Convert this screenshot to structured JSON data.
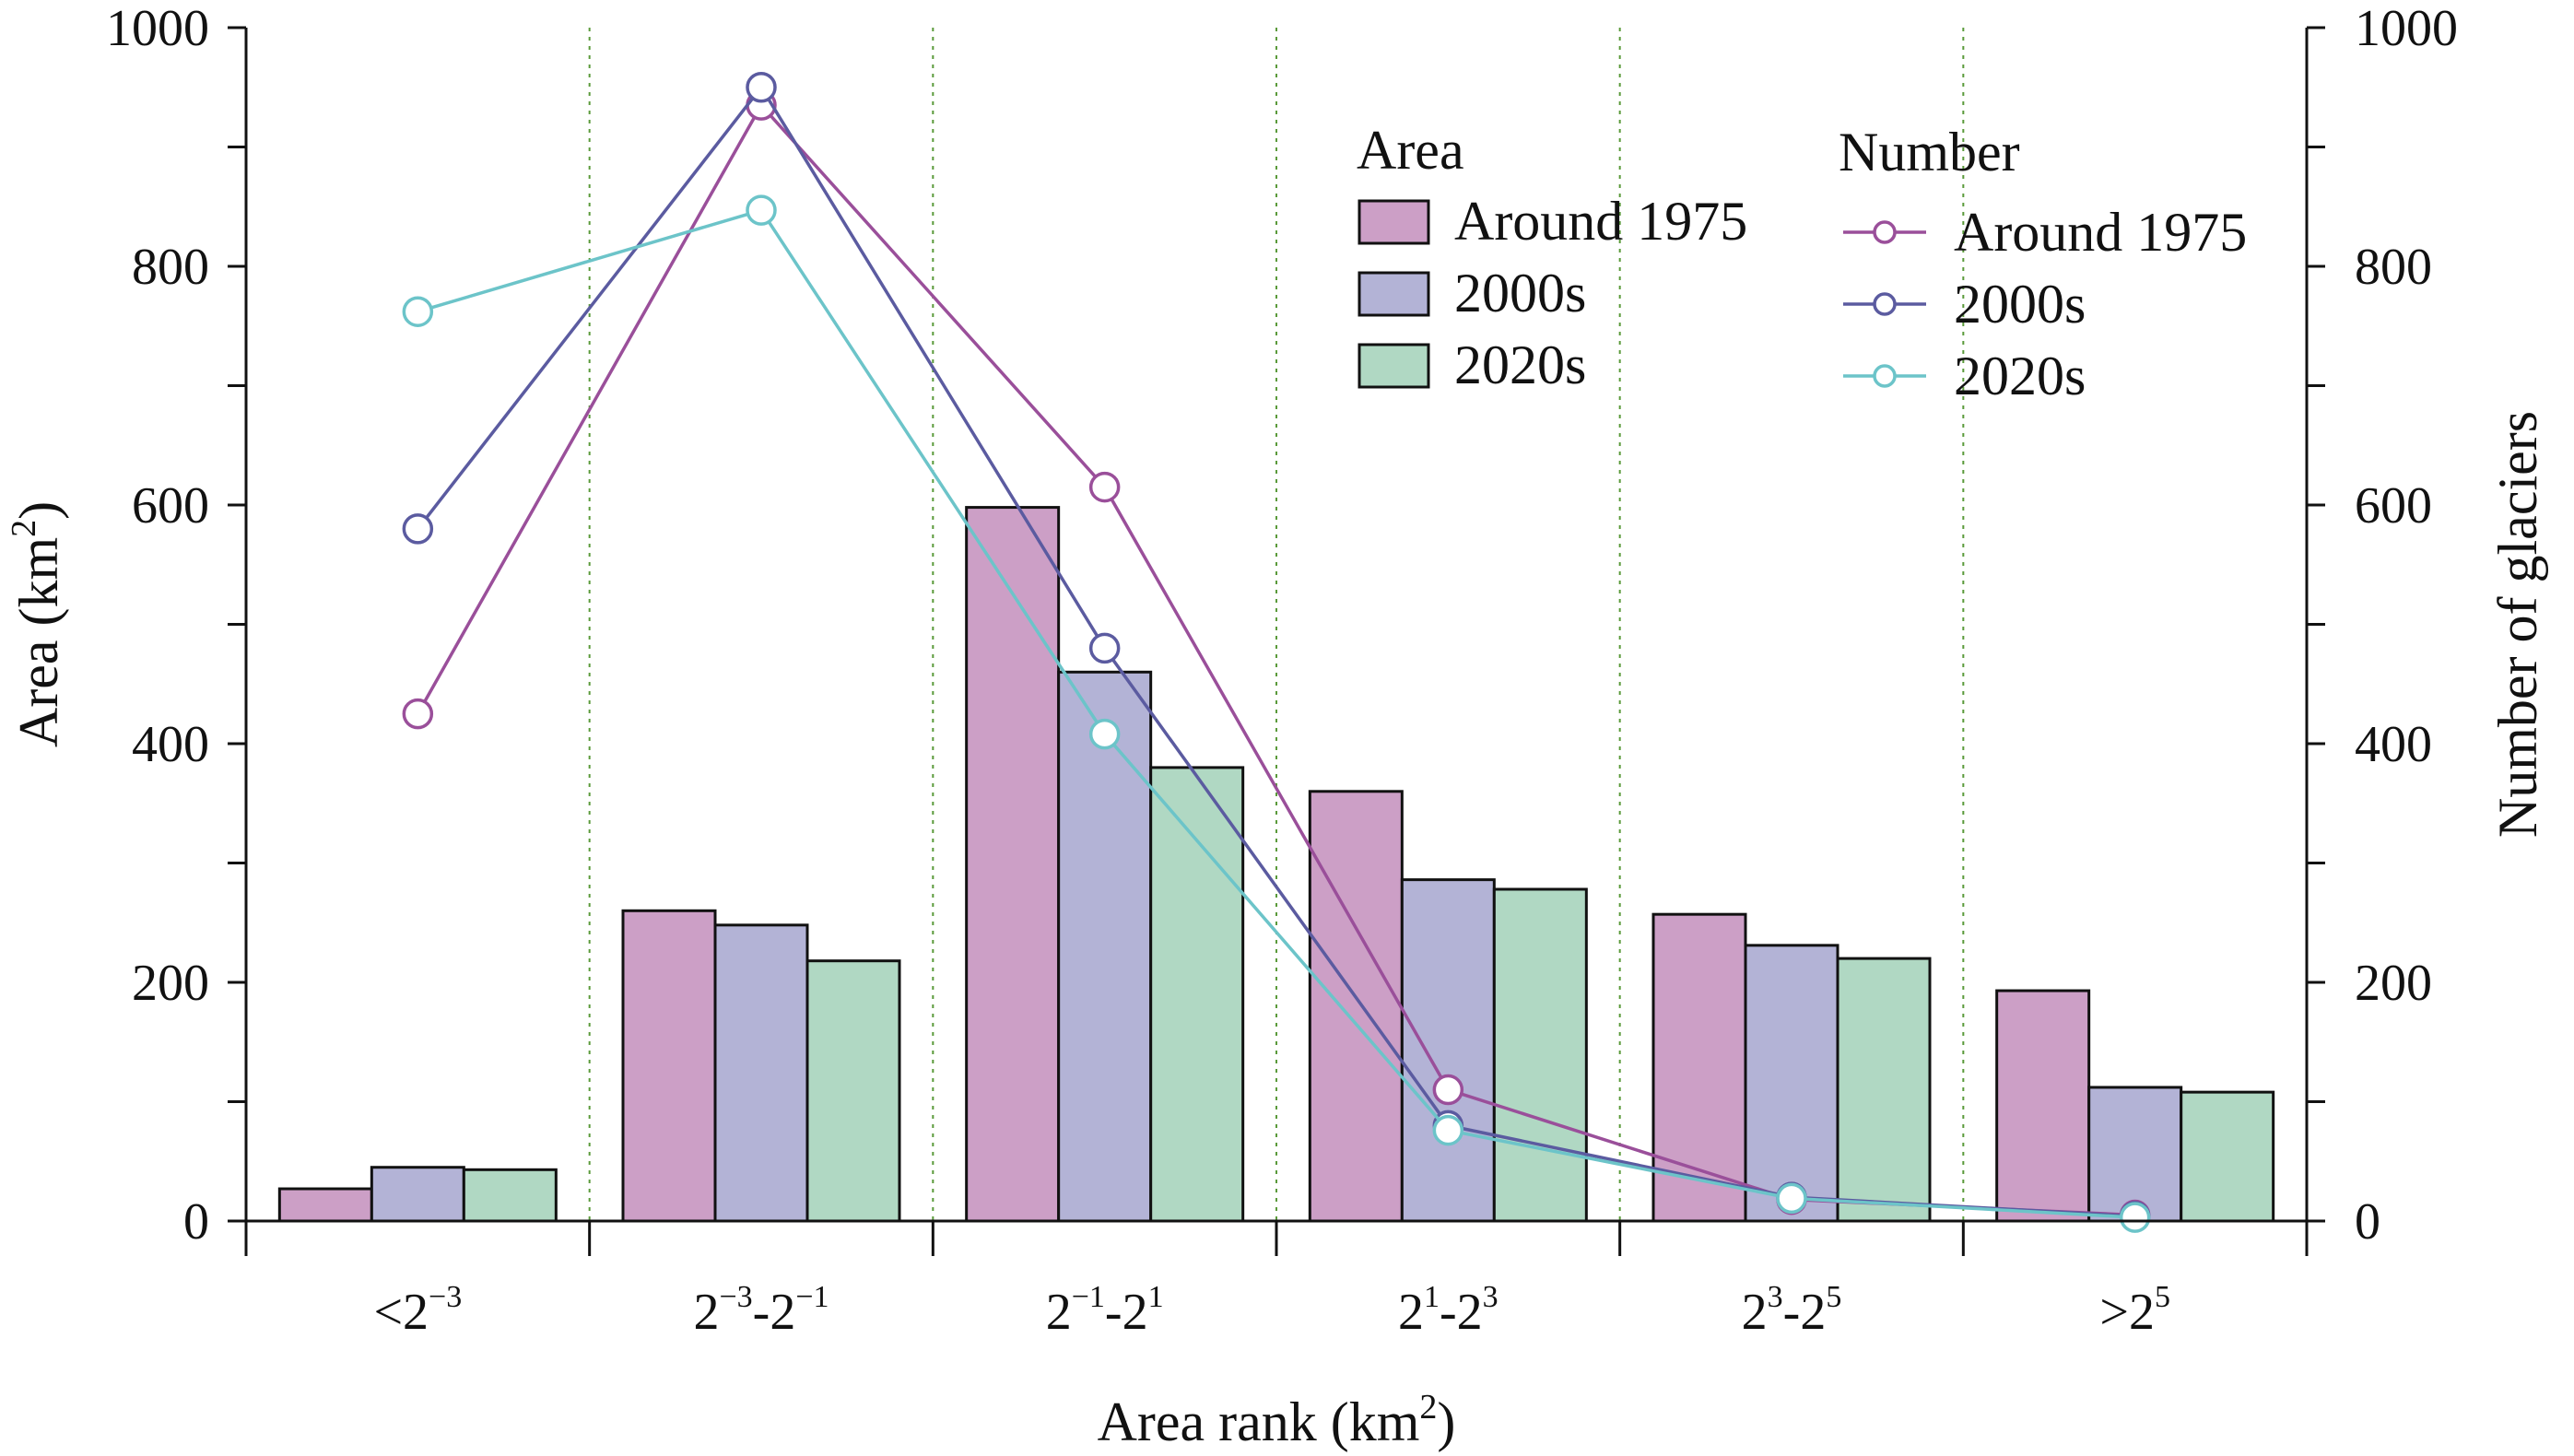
{
  "chart_data": {
    "type": "bar",
    "categories": [
      "<2^-3",
      "2^-3-2^-1",
      "2^-1-2^1",
      "2^1-2^3",
      "2^3-2^5",
      ">2^5"
    ],
    "xlabel": "Area rank (km²)",
    "ylabel": "Area (km²)",
    "y2label": "Number of glaciers",
    "ylim": [
      0,
      1000
    ],
    "y2lim": [
      0,
      1000
    ],
    "y_ticks": [
      0,
      200,
      400,
      600,
      800,
      1000
    ],
    "y2_ticks": [
      0,
      200,
      400,
      600,
      800,
      1000
    ],
    "grid": "vertical dotted lines between categories",
    "legend": {
      "area_title": "Area",
      "number_title": "Number",
      "placement": "top-right"
    },
    "bar_series": [
      {
        "name": "Around 1975",
        "color": "#cc9fc6",
        "values": [
          27,
          260,
          598,
          360,
          257,
          193
        ]
      },
      {
        "name": "2000s",
        "color": "#b3b3d6",
        "values": [
          45,
          248,
          460,
          286,
          231,
          112
        ]
      },
      {
        "name": "2020s",
        "color": "#b0d8c3",
        "values": [
          43,
          218,
          380,
          278,
          220,
          108
        ]
      }
    ],
    "line_series": [
      {
        "name": "Around 1975",
        "color": "#9a4f9a",
        "values": [
          425,
          935,
          615,
          110,
          18,
          5
        ]
      },
      {
        "name": "2000s",
        "color": "#5b5ba0",
        "values": [
          580,
          950,
          480,
          80,
          20,
          4
        ]
      },
      {
        "name": "2020s",
        "color": "#6cc4c9",
        "values": [
          762,
          847,
          408,
          76,
          19,
          3
        ]
      }
    ]
  }
}
